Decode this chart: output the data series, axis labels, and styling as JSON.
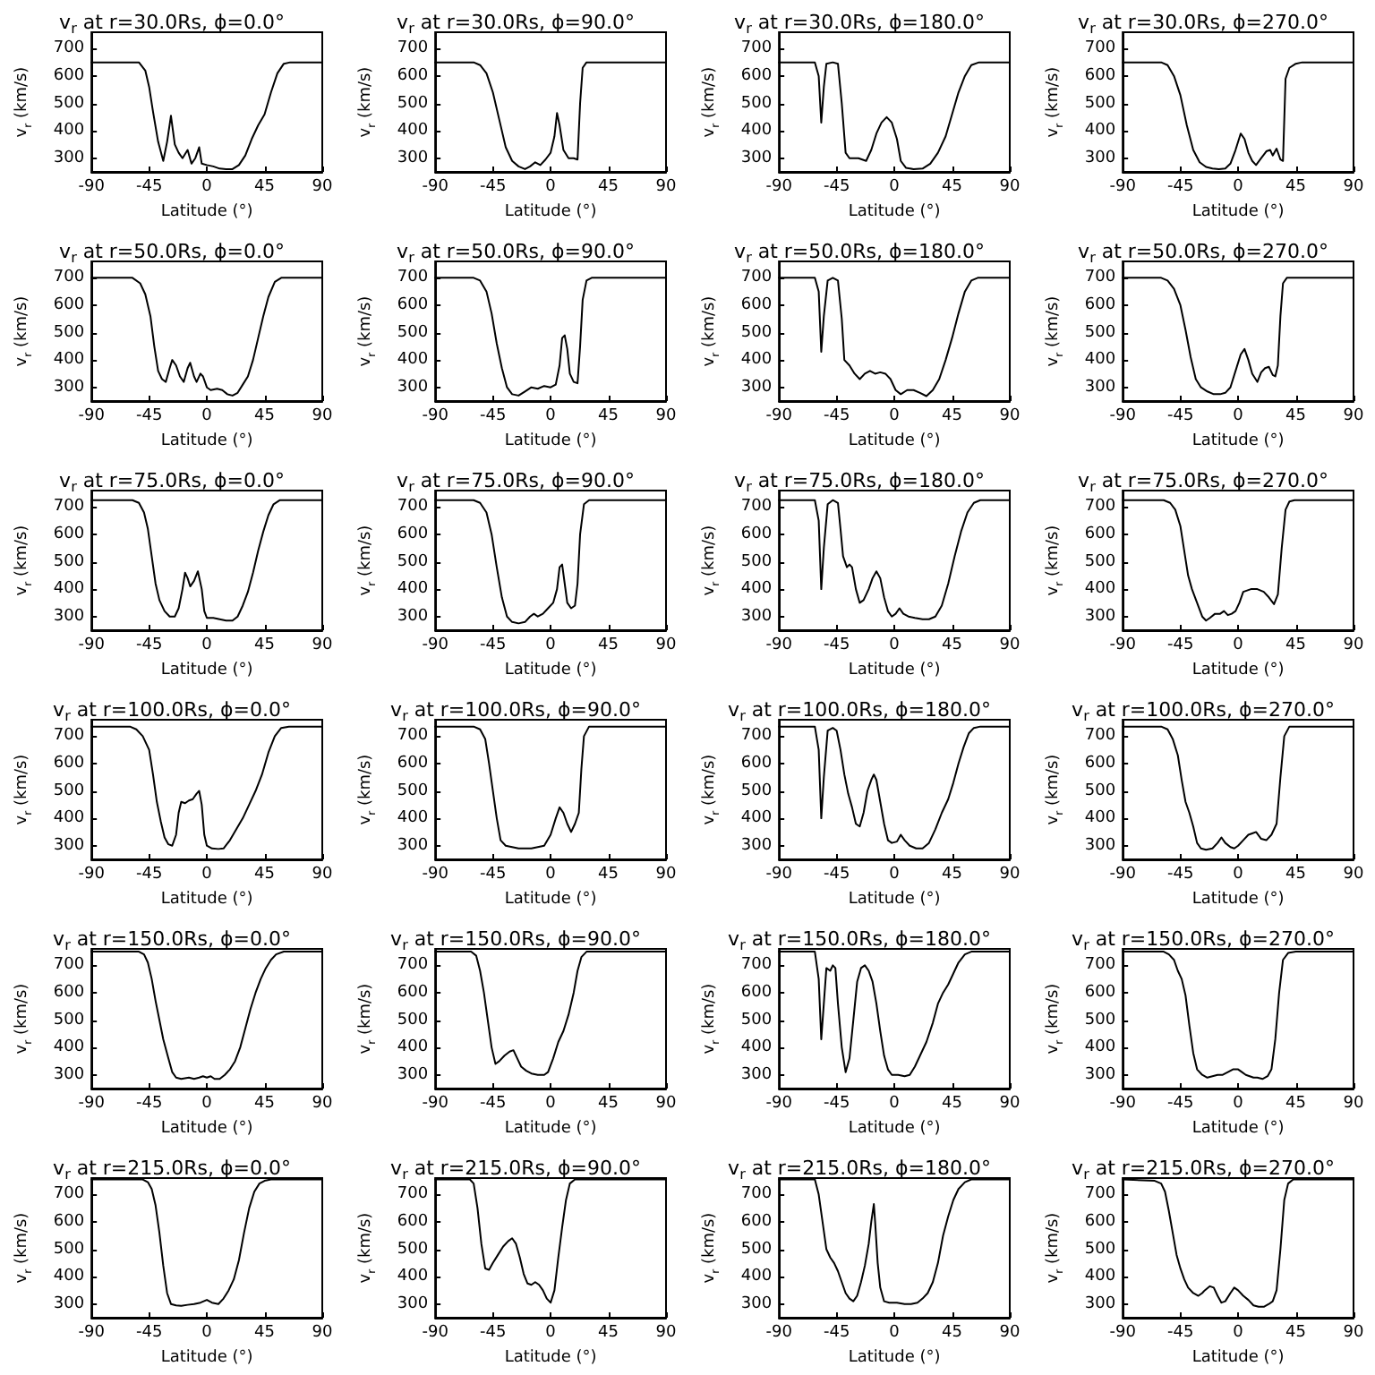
{
  "chart_data": [
    {
      "type": "line",
      "title": "v$_{r}$ at r=30.0Rs, ϕ=0.0°",
      "xlabel": "Latitude (°)",
      "ylabel": "v$_{r}$ (km/s)",
      "color": "#000000",
      "xlim": [
        -90,
        90
      ],
      "ylim": [
        250,
        760
      ],
      "xticks": [
        -90,
        -45,
        0,
        45,
        90
      ],
      "yticks": [
        300,
        400,
        500,
        600,
        700
      ],
      "x": [
        -90,
        -53,
        -48,
        -45,
        -42,
        -38,
        -34,
        -31,
        -28,
        -25,
        -22,
        -19,
        -15,
        -12,
        -9,
        -6,
        -4,
        0,
        5,
        10,
        15,
        20,
        25,
        30,
        35,
        40,
        45,
        50,
        55,
        60,
        65,
        90
      ],
      "values": [
        650,
        650,
        620,
        560,
        470,
        360,
        290,
        360,
        455,
        350,
        320,
        300,
        330,
        280,
        300,
        340,
        280,
        275,
        270,
        262,
        260,
        260,
        275,
        310,
        370,
        420,
        460,
        540,
        610,
        645,
        650,
        650
      ]
    },
    {
      "type": "line",
      "title": "v$_{r}$ at r=30.0Rs, ϕ=90.0°",
      "xlabel": "Latitude (°)",
      "ylabel": "v$_{r}$ (km/s)",
      "color": "#000000",
      "xlim": [
        -90,
        90
      ],
      "ylim": [
        250,
        760
      ],
      "xticks": [
        -90,
        -45,
        0,
        45,
        90
      ],
      "yticks": [
        300,
        400,
        500,
        600,
        700
      ],
      "x": [
        -90,
        -60,
        -55,
        -50,
        -45,
        -40,
        -35,
        -30,
        -25,
        -20,
        -16,
        -12,
        -8,
        -4,
        0,
        3,
        5,
        7,
        10,
        14,
        18,
        21,
        23,
        25,
        28,
        90
      ],
      "values": [
        650,
        650,
        640,
        610,
        540,
        440,
        340,
        290,
        270,
        260,
        270,
        285,
        275,
        295,
        320,
        380,
        465,
        420,
        330,
        300,
        300,
        295,
        500,
        630,
        650,
        650
      ]
    },
    {
      "type": "line",
      "title": "v$_{r}$ at r=30.0Rs, ϕ=180.0°",
      "xlabel": "Latitude (°)",
      "ylabel": "v$_{r}$ (km/s)",
      "color": "#000000",
      "xlim": [
        -90,
        90
      ],
      "ylim": [
        250,
        760
      ],
      "xticks": [
        -90,
        -45,
        0,
        45,
        90
      ],
      "yticks": [
        300,
        400,
        500,
        600,
        700
      ],
      "x": [
        -90,
        -62,
        -59,
        -57,
        -55,
        -53,
        -48,
        -44,
        -41,
        -38,
        -35,
        -28,
        -22,
        -18,
        -14,
        -10,
        -6,
        -2,
        2,
        5,
        9,
        15,
        22,
        28,
        34,
        40,
        45,
        50,
        55,
        60,
        66,
        90
      ],
      "values": [
        650,
        650,
        600,
        430,
        560,
        645,
        650,
        645,
        500,
        320,
        300,
        300,
        290,
        330,
        390,
        430,
        450,
        430,
        370,
        290,
        265,
        260,
        262,
        280,
        320,
        380,
        460,
        540,
        600,
        640,
        650,
        650
      ]
    },
    {
      "type": "line",
      "title": "v$_{r}$ at r=30.0Rs, ϕ=270.0°",
      "xlabel": "Latitude (°)",
      "ylabel": "v$_{r}$ (km/s)",
      "color": "#000000",
      "xlim": [
        -90,
        90
      ],
      "ylim": [
        250,
        760
      ],
      "xticks": [
        -90,
        -45,
        0,
        45,
        90
      ],
      "yticks": [
        300,
        400,
        500,
        600,
        700
      ],
      "x": [
        -90,
        -60,
        -55,
        -50,
        -45,
        -40,
        -35,
        -30,
        -25,
        -20,
        -15,
        -10,
        -6,
        -2,
        2,
        5,
        8,
        11,
        14,
        18,
        22,
        25,
        27,
        30,
        33,
        35,
        37,
        40,
        45,
        50,
        90
      ],
      "values": [
        650,
        650,
        640,
        600,
        530,
        420,
        330,
        285,
        268,
        262,
        260,
        262,
        280,
        330,
        390,
        370,
        320,
        290,
        275,
        300,
        325,
        330,
        310,
        335,
        295,
        290,
        590,
        630,
        645,
        650,
        650
      ]
    },
    {
      "type": "line",
      "title": "v$_{r}$ at r=50.0Rs, ϕ=0.0°",
      "xlabel": "Latitude (°)",
      "ylabel": "v$_{r}$ (km/s)",
      "color": "#000000",
      "xlim": [
        -90,
        90
      ],
      "ylim": [
        250,
        760
      ],
      "xticks": [
        -90,
        -45,
        0,
        45,
        90
      ],
      "yticks": [
        300,
        400,
        500,
        600,
        700
      ],
      "x": [
        -90,
        -58,
        -52,
        -48,
        -44,
        -41,
        -38,
        -35,
        -32,
        -29,
        -27,
        -24,
        -21,
        -18,
        -15,
        -13,
        -10,
        -8,
        -5,
        -3,
        0,
        3,
        8,
        12,
        16,
        20,
        24,
        28,
        32,
        36,
        40,
        44,
        48,
        53,
        58,
        90
      ],
      "values": [
        700,
        700,
        680,
        640,
        560,
        450,
        360,
        330,
        320,
        370,
        400,
        380,
        340,
        320,
        370,
        390,
        340,
        320,
        350,
        340,
        300,
        290,
        295,
        290,
        275,
        270,
        280,
        310,
        340,
        400,
        480,
        560,
        630,
        685,
        700,
        700
      ]
    },
    {
      "type": "line",
      "title": "v$_{r}$ at r=50.0Rs, ϕ=90.0°",
      "xlabel": "Latitude (°)",
      "ylabel": "v$_{r}$ (km/s)",
      "color": "#000000",
      "xlim": [
        -90,
        90
      ],
      "ylim": [
        250,
        760
      ],
      "xticks": [
        -90,
        -45,
        0,
        45,
        90
      ],
      "yticks": [
        300,
        400,
        500,
        600,
        700
      ],
      "x": [
        -90,
        -60,
        -55,
        -50,
        -46,
        -42,
        -38,
        -34,
        -30,
        -25,
        -20,
        -15,
        -10,
        -5,
        0,
        4,
        7,
        9,
        11,
        13,
        15,
        18,
        21,
        23,
        25,
        28,
        32,
        90
      ],
      "values": [
        700,
        700,
        690,
        650,
        570,
        460,
        370,
        300,
        275,
        270,
        285,
        300,
        295,
        305,
        300,
        310,
        380,
        480,
        490,
        440,
        350,
        320,
        315,
        450,
        620,
        690,
        700,
        700
      ]
    },
    {
      "type": "line",
      "title": "v$_{r}$ at r=50.0Rs, ϕ=180.0°",
      "xlabel": "Latitude (°)",
      "ylabel": "v$_{r}$ (km/s)",
      "color": "#000000",
      "xlim": [
        -90,
        90
      ],
      "ylim": [
        250,
        760
      ],
      "xticks": [
        -90,
        -45,
        0,
        45,
        90
      ],
      "yticks": [
        300,
        400,
        500,
        600,
        700
      ],
      "x": [
        -90,
        -62,
        -59,
        -57,
        -55,
        -52,
        -48,
        -44,
        -41,
        -39,
        -35,
        -31,
        -27,
        -23,
        -19,
        -15,
        -11,
        -7,
        -3,
        1,
        5,
        10,
        15,
        20,
        25,
        30,
        35,
        40,
        45,
        50,
        55,
        60,
        65,
        90
      ],
      "values": [
        700,
        700,
        650,
        430,
        560,
        690,
        700,
        690,
        550,
        400,
        380,
        350,
        330,
        350,
        360,
        350,
        355,
        350,
        330,
        290,
        275,
        290,
        290,
        280,
        268,
        290,
        330,
        400,
        480,
        570,
        650,
        690,
        700,
        700
      ]
    },
    {
      "type": "line",
      "title": "v$_{r}$ at r=50.0Rs, ϕ=270.0°",
      "xlabel": "Latitude (°)",
      "ylabel": "v$_{r}$ (km/s)",
      "color": "#000000",
      "xlim": [
        -90,
        90
      ],
      "ylim": [
        250,
        760
      ],
      "xticks": [
        -90,
        -45,
        0,
        45,
        90
      ],
      "yticks": [
        300,
        400,
        500,
        600,
        700
      ],
      "x": [
        -90,
        -60,
        -55,
        -50,
        -45,
        -41,
        -37,
        -33,
        -29,
        -24,
        -19,
        -14,
        -10,
        -6,
        -2,
        2,
        5,
        8,
        11,
        15,
        18,
        21,
        24,
        27,
        29,
        31,
        33,
        35,
        38,
        90
      ],
      "values": [
        700,
        700,
        690,
        660,
        600,
        510,
        410,
        330,
        300,
        285,
        275,
        275,
        280,
        300,
        360,
        420,
        440,
        400,
        350,
        320,
        355,
        370,
        375,
        345,
        340,
        380,
        560,
        680,
        700,
        700
      ]
    },
    {
      "type": "line",
      "title": "v$_{r}$ at r=75.0Rs, ϕ=0.0°",
      "xlabel": "Latitude (°)",
      "ylabel": "v$_{r}$ (km/s)",
      "color": "#000000",
      "xlim": [
        -90,
        90
      ],
      "ylim": [
        250,
        760
      ],
      "xticks": [
        -90,
        -45,
        0,
        45,
        90
      ],
      "yticks": [
        300,
        400,
        500,
        600,
        700
      ],
      "x": [
        -90,
        -58,
        -53,
        -49,
        -46,
        -43,
        -40,
        -37,
        -33,
        -29,
        -25,
        -22,
        -19,
        -17,
        -15,
        -13,
        -10,
        -7,
        -4,
        -2,
        0,
        5,
        10,
        15,
        20,
        24,
        28,
        32,
        36,
        40,
        44,
        48,
        52,
        57,
        90
      ],
      "values": [
        725,
        725,
        715,
        680,
        620,
        520,
        420,
        360,
        320,
        300,
        300,
        330,
        400,
        460,
        440,
        410,
        430,
        465,
        400,
        320,
        295,
        295,
        290,
        285,
        285,
        300,
        340,
        390,
        460,
        540,
        610,
        670,
        710,
        725,
        725
      ]
    },
    {
      "type": "line",
      "title": "v$_{r}$ at r=75.0Rs, ϕ=90.0°",
      "xlabel": "Latitude (°)",
      "ylabel": "v$_{r}$ (km/s)",
      "color": "#000000",
      "xlim": [
        -90,
        90
      ],
      "ylim": [
        250,
        760
      ],
      "xticks": [
        -90,
        -45,
        0,
        45,
        90
      ],
      "yticks": [
        300,
        400,
        500,
        600,
        700
      ],
      "x": [
        -90,
        -60,
        -55,
        -50,
        -46,
        -42,
        -38,
        -34,
        -30,
        -25,
        -20,
        -16,
        -13,
        -10,
        -6,
        -2,
        2,
        5,
        7,
        9,
        11,
        13,
        16,
        19,
        21,
        23,
        26,
        30,
        90
      ],
      "values": [
        725,
        725,
        715,
        680,
        600,
        480,
        370,
        300,
        280,
        275,
        280,
        300,
        310,
        300,
        310,
        330,
        350,
        400,
        480,
        490,
        420,
        350,
        330,
        340,
        420,
        600,
        710,
        725,
        725
      ]
    },
    {
      "type": "line",
      "title": "v$_{r}$ at r=75.0Rs, ϕ=180.0°",
      "xlabel": "Latitude (°)",
      "ylabel": "v$_{r}$ (km/s)",
      "color": "#000000",
      "xlim": [
        -90,
        90
      ],
      "ylim": [
        250,
        760
      ],
      "xticks": [
        -90,
        -45,
        0,
        45,
        90
      ],
      "yticks": [
        300,
        400,
        500,
        600,
        700
      ],
      "x": [
        -90,
        -62,
        -59,
        -57,
        -55,
        -52,
        -48,
        -44,
        -42,
        -40,
        -37,
        -35,
        -33,
        -30,
        -27,
        -24,
        -20,
        -17,
        -14,
        -11,
        -8,
        -5,
        -2,
        1,
        4,
        7,
        11,
        16,
        22,
        27,
        32,
        37,
        42,
        47,
        52,
        57,
        62,
        67,
        90
      ],
      "values": [
        725,
        725,
        650,
        400,
        550,
        710,
        725,
        715,
        620,
        520,
        480,
        490,
        480,
        400,
        350,
        360,
        400,
        440,
        465,
        440,
        370,
        320,
        300,
        310,
        330,
        310,
        300,
        295,
        290,
        290,
        300,
        340,
        420,
        520,
        610,
        680,
        715,
        725,
        725
      ]
    },
    {
      "type": "line",
      "title": "v$_{r}$ at r=75.0Rs, ϕ=270.0°",
      "xlabel": "Latitude (°)",
      "ylabel": "v$_{r}$ (km/s)",
      "color": "#000000",
      "xlim": [
        -90,
        90
      ],
      "ylim": [
        250,
        760
      ],
      "xticks": [
        -90,
        -45,
        0,
        45,
        90
      ],
      "yticks": [
        300,
        400,
        500,
        600,
        700
      ],
      "x": [
        -90,
        -58,
        -53,
        -49,
        -45,
        -42,
        -39,
        -36,
        -32,
        -28,
        -25,
        -22,
        -18,
        -14,
        -11,
        -8,
        -5,
        -2,
        1,
        4,
        7,
        10,
        15,
        20,
        24,
        28,
        31,
        34,
        37,
        40,
        44,
        90
      ],
      "values": [
        725,
        725,
        715,
        690,
        630,
        540,
        450,
        400,
        350,
        300,
        285,
        295,
        310,
        310,
        320,
        305,
        310,
        320,
        350,
        390,
        395,
        400,
        400,
        390,
        370,
        345,
        380,
        550,
        690,
        720,
        725,
        725
      ]
    },
    {
      "type": "line",
      "title": "v$_{r}$ at r=100.0Rs, ϕ=0.0°",
      "xlabel": "Latitude (°)",
      "ylabel": "v$_{r}$ (km/s)",
      "color": "#000000",
      "xlim": [
        -90,
        90
      ],
      "ylim": [
        250,
        760
      ],
      "xticks": [
        -90,
        -45,
        0,
        45,
        90
      ],
      "yticks": [
        300,
        400,
        500,
        600,
        700
      ],
      "x": [
        -90,
        -60,
        -55,
        -50,
        -45,
        -42,
        -39,
        -36,
        -33,
        -30,
        -27,
        -24,
        -22,
        -20,
        -17,
        -14,
        -11,
        -8,
        -6,
        -4,
        -2,
        0,
        4,
        9,
        13,
        18,
        23,
        28,
        33,
        38,
        43,
        48,
        53,
        58,
        64,
        90
      ],
      "values": [
        735,
        735,
        725,
        700,
        650,
        560,
        460,
        390,
        330,
        305,
        300,
        340,
        420,
        460,
        455,
        465,
        470,
        490,
        500,
        450,
        340,
        300,
        290,
        288,
        290,
        320,
        360,
        400,
        450,
        500,
        560,
        640,
        700,
        730,
        735,
        735
      ]
    },
    {
      "type": "line",
      "title": "v$_{r}$ at r=100.0Rs, ϕ=90.0°",
      "xlabel": "Latitude (°)",
      "ylabel": "v$_{r}$ (km/s)",
      "color": "#000000",
      "xlim": [
        -90,
        90
      ],
      "ylim": [
        250,
        760
      ],
      "xticks": [
        -90,
        -45,
        0,
        45,
        90
      ],
      "yticks": [
        300,
        400,
        500,
        600,
        700
      ],
      "x": [
        -90,
        -60,
        -55,
        -51,
        -48,
        -45,
        -42,
        -39,
        -35,
        -30,
        -25,
        -20,
        -15,
        -10,
        -5,
        0,
        4,
        7,
        10,
        13,
        16,
        19,
        22,
        24,
        26,
        30,
        90
      ],
      "values": [
        735,
        735,
        725,
        690,
        600,
        500,
        400,
        320,
        300,
        295,
        290,
        290,
        290,
        295,
        300,
        340,
        400,
        440,
        420,
        380,
        350,
        380,
        420,
        580,
        700,
        735,
        735
      ]
    },
    {
      "type": "line",
      "title": "v$_{r}$ at r=100.0Rs, ϕ=180.0°",
      "xlabel": "Latitude (°)",
      "ylabel": "v$_{r}$ (km/s)",
      "color": "#000000",
      "xlim": [
        -90,
        90
      ],
      "ylim": [
        250,
        760
      ],
      "xticks": [
        -90,
        -45,
        0,
        45,
        90
      ],
      "yticks": [
        300,
        400,
        500,
        600,
        700
      ],
      "x": [
        -90,
        -62,
        -59,
        -57,
        -55,
        -52,
        -48,
        -45,
        -42,
        -39,
        -36,
        -33,
        -30,
        -27,
        -24,
        -21,
        -18,
        -16,
        -14,
        -11,
        -8,
        -5,
        -2,
        2,
        5,
        8,
        12,
        17,
        22,
        27,
        32,
        37,
        42,
        46,
        50,
        54,
        58,
        62,
        67,
        90
      ],
      "values": [
        735,
        735,
        650,
        400,
        550,
        720,
        730,
        720,
        650,
        560,
        490,
        440,
        380,
        370,
        420,
        500,
        540,
        560,
        540,
        460,
        380,
        320,
        310,
        315,
        340,
        320,
        300,
        290,
        290,
        310,
        360,
        420,
        470,
        530,
        600,
        660,
        710,
        730,
        735,
        735
      ]
    },
    {
      "type": "line",
      "title": "v$_{r}$ at r=100.0Rs, ϕ=270.0°",
      "xlabel": "Latitude (°)",
      "ylabel": "v$_{r}$ (km/s)",
      "color": "#000000",
      "xlim": [
        -90,
        90
      ],
      "ylim": [
        250,
        760
      ],
      "xticks": [
        -90,
        -45,
        0,
        45,
        90
      ],
      "yticks": [
        300,
        400,
        500,
        600,
        700
      ],
      "x": [
        -90,
        -60,
        -55,
        -51,
        -47,
        -44,
        -41,
        -38,
        -35,
        -32,
        -29,
        -25,
        -20,
        -16,
        -13,
        -10,
        -6,
        -3,
        0,
        4,
        8,
        11,
        14,
        18,
        22,
        26,
        30,
        33,
        36,
        40,
        90
      ],
      "values": [
        735,
        735,
        725,
        690,
        630,
        540,
        460,
        420,
        370,
        310,
        290,
        285,
        290,
        310,
        330,
        310,
        295,
        290,
        300,
        320,
        340,
        345,
        350,
        325,
        320,
        340,
        380,
        550,
        700,
        735,
        735
      ]
    },
    {
      "type": "line",
      "title": "v$_{r}$ at r=150.0Rs, ϕ=0.0°",
      "xlabel": "Latitude (°)",
      "ylabel": "v$_{r}$ (km/s)",
      "color": "#000000",
      "xlim": [
        -90,
        90
      ],
      "ylim": [
        250,
        760
      ],
      "xticks": [
        -90,
        -45,
        0,
        45,
        90
      ],
      "yticks": [
        300,
        400,
        500,
        600,
        700
      ],
      "x": [
        -90,
        -53,
        -49,
        -46,
        -43,
        -40,
        -37,
        -34,
        -30,
        -27,
        -24,
        -20,
        -14,
        -10,
        -6,
        -3,
        0,
        3,
        6,
        10,
        14,
        18,
        22,
        26,
        30,
        34,
        38,
        42,
        46,
        50,
        54,
        60,
        90
      ],
      "values": [
        750,
        750,
        740,
        710,
        650,
        570,
        500,
        430,
        360,
        310,
        290,
        285,
        290,
        285,
        290,
        295,
        290,
        295,
        285,
        285,
        300,
        320,
        350,
        400,
        470,
        540,
        600,
        650,
        690,
        720,
        740,
        750,
        750
      ]
    },
    {
      "type": "line",
      "title": "v$_{r}$ at r=150.0Rs, ϕ=90.0°",
      "xlabel": "Latitude (°)",
      "ylabel": "v$_{r}$ (km/s)",
      "color": "#000000",
      "xlim": [
        -90,
        90
      ],
      "ylim": [
        250,
        760
      ],
      "xticks": [
        -90,
        -45,
        0,
        45,
        90
      ],
      "yticks": [
        300,
        400,
        500,
        600,
        700
      ],
      "x": [
        -90,
        -62,
        -58,
        -55,
        -52,
        -49,
        -46,
        -43,
        -40,
        -36,
        -32,
        -29,
        -26,
        -23,
        -19,
        -15,
        -10,
        -5,
        -2,
        2,
        6,
        10,
        14,
        18,
        21,
        24,
        28,
        90
      ],
      "values": [
        750,
        750,
        735,
        680,
        600,
        500,
        400,
        340,
        350,
        370,
        385,
        390,
        360,
        330,
        315,
        305,
        300,
        300,
        310,
        360,
        420,
        460,
        520,
        600,
        680,
        730,
        750,
        750
      ]
    },
    {
      "type": "line",
      "title": "v$_{r}$ at r=150.0Rs, ϕ=180.0°",
      "xlabel": "Latitude (°)",
      "ylabel": "v$_{r}$ (km/s)",
      "color": "#000000",
      "xlim": [
        -90,
        90
      ],
      "ylim": [
        250,
        760
      ],
      "xticks": [
        -90,
        -45,
        0,
        45,
        90
      ],
      "yticks": [
        300,
        400,
        500,
        600,
        700
      ],
      "x": [
        -90,
        -62,
        -59,
        -57,
        -55,
        -53,
        -50,
        -48,
        -46,
        -44,
        -41,
        -38,
        -35,
        -32,
        -29,
        -26,
        -23,
        -20,
        -17,
        -14,
        -11,
        -8,
        -5,
        -2,
        3,
        8,
        12,
        16,
        20,
        25,
        30,
        34,
        38,
        42,
        46,
        50,
        55,
        60,
        90
      ],
      "values": [
        750,
        750,
        650,
        430,
        560,
        690,
        680,
        700,
        690,
        560,
        400,
        310,
        360,
        500,
        640,
        690,
        700,
        680,
        640,
        560,
        460,
        370,
        320,
        300,
        300,
        295,
        300,
        330,
        370,
        420,
        490,
        560,
        600,
        630,
        670,
        710,
        740,
        750,
        750
      ]
    },
    {
      "type": "line",
      "title": "v$_{r}$ at r=150.0Rs, ϕ=270.0°",
      "xlabel": "Latitude (°)",
      "ylabel": "v$_{r}$ (km/s)",
      "color": "#000000",
      "xlim": [
        -90,
        90
      ],
      "ylim": [
        250,
        760
      ],
      "xticks": [
        -90,
        -45,
        0,
        45,
        90
      ],
      "yticks": [
        300,
        400,
        500,
        600,
        700
      ],
      "x": [
        -90,
        -58,
        -54,
        -50,
        -47,
        -44,
        -41,
        -38,
        -35,
        -32,
        -28,
        -24,
        -20,
        -16,
        -12,
        -8,
        -4,
        0,
        3,
        6,
        9,
        12,
        15,
        19,
        23,
        26,
        29,
        32,
        35,
        39,
        45,
        90
      ],
      "values": [
        750,
        750,
        740,
        720,
        680,
        650,
        590,
        480,
        380,
        320,
        300,
        290,
        295,
        300,
        300,
        310,
        320,
        320,
        310,
        300,
        295,
        290,
        290,
        285,
        295,
        320,
        430,
        600,
        720,
        745,
        750,
        750
      ]
    },
    {
      "type": "line",
      "title": "v$_{r}$ at r=215.0Rs, ϕ=0.0°",
      "xlabel": "Latitude (°)",
      "ylabel": "v$_{r}$ (km/s)",
      "color": "#000000",
      "xlim": [
        -90,
        90
      ],
      "ylim": [
        250,
        760
      ],
      "xticks": [
        -90,
        -45,
        0,
        45,
        90
      ],
      "yticks": [
        300,
        400,
        500,
        600,
        700
      ],
      "x": [
        -90,
        -50,
        -46,
        -43,
        -40,
        -37,
        -34,
        -31,
        -28,
        -24,
        -20,
        -15,
        -10,
        -5,
        0,
        4,
        9,
        13,
        17,
        21,
        25,
        29,
        33,
        37,
        41,
        45,
        50,
        90
      ],
      "values": [
        755,
        755,
        745,
        720,
        660,
        560,
        440,
        340,
        300,
        295,
        293,
        297,
        300,
        305,
        315,
        305,
        300,
        320,
        350,
        390,
        460,
        560,
        650,
        710,
        740,
        750,
        755,
        755
      ]
    },
    {
      "type": "line",
      "title": "v$_{r}$ at r=215.0Rs, ϕ=90.0°",
      "xlabel": "Latitude (°)",
      "ylabel": "v$_{r}$ (km/s)",
      "color": "#000000",
      "xlim": [
        -90,
        90
      ],
      "ylim": [
        250,
        760
      ],
      "xticks": [
        -90,
        -45,
        0,
        45,
        90
      ],
      "yticks": [
        300,
        400,
        500,
        600,
        700
      ],
      "x": [
        -90,
        -63,
        -60,
        -57,
        -54,
        -51,
        -48,
        -45,
        -41,
        -37,
        -33,
        -30,
        -27,
        -24,
        -21,
        -18,
        -15,
        -12,
        -9,
        -6,
        -3,
        0,
        3,
        6,
        9,
        12,
        15,
        19,
        90
      ],
      "values": [
        755,
        755,
        740,
        650,
        520,
        430,
        425,
        450,
        480,
        510,
        530,
        540,
        520,
        470,
        410,
        375,
        370,
        380,
        370,
        350,
        320,
        305,
        350,
        470,
        580,
        680,
        740,
        755,
        755
      ]
    },
    {
      "type": "line",
      "title": "v$_{r}$ at r=215.0Rs, ϕ=180.0°",
      "xlabel": "Latitude (°)",
      "ylabel": "v$_{r}$ (km/s)",
      "color": "#000000",
      "xlim": [
        -90,
        90
      ],
      "ylim": [
        250,
        760
      ],
      "xticks": [
        -90,
        -45,
        0,
        45,
        90
      ],
      "yticks": [
        300,
        400,
        500,
        600,
        700
      ],
      "x": [
        -90,
        -62,
        -59,
        -56,
        -53,
        -50,
        -47,
        -44,
        -41,
        -38,
        -35,
        -32,
        -29,
        -26,
        -23,
        -20,
        -18,
        -16,
        -15,
        -13,
        -11,
        -8,
        -4,
        2,
        8,
        13,
        18,
        22,
        26,
        30,
        34,
        38,
        42,
        46,
        50,
        55,
        60,
        90
      ],
      "values": [
        755,
        755,
        700,
        600,
        500,
        470,
        450,
        420,
        380,
        340,
        320,
        310,
        330,
        380,
        440,
        520,
        600,
        665,
        600,
        450,
        360,
        310,
        305,
        305,
        300,
        300,
        305,
        320,
        340,
        380,
        450,
        550,
        620,
        680,
        720,
        745,
        755,
        755
      ]
    },
    {
      "type": "line",
      "title": "v$_{r}$ at r=215.0Rs, ϕ=270.0°",
      "xlabel": "Latitude (°)",
      "ylabel": "v$_{r}$ (km/s)",
      "color": "#000000",
      "xlim": [
        -90,
        90
      ],
      "ylim": [
        250,
        760
      ],
      "xticks": [
        -90,
        -45,
        0,
        45,
        90
      ],
      "yticks": [
        300,
        400,
        500,
        600,
        700
      ],
      "x": [
        -90,
        -65,
        -60,
        -57,
        -54,
        -51,
        -48,
        -45,
        -42,
        -39,
        -35,
        -31,
        -28,
        -26,
        -22,
        -19,
        -16,
        -13,
        -10,
        -6,
        -3,
        0,
        4,
        8,
        12,
        16,
        20,
        24,
        27,
        30,
        33,
        36,
        39,
        43,
        90
      ],
      "values": [
        755,
        750,
        740,
        710,
        640,
        560,
        480,
        430,
        390,
        360,
        340,
        330,
        340,
        350,
        365,
        360,
        330,
        305,
        310,
        340,
        360,
        350,
        330,
        315,
        295,
        290,
        290,
        300,
        310,
        350,
        500,
        680,
        740,
        755,
        755
      ]
    }
  ]
}
